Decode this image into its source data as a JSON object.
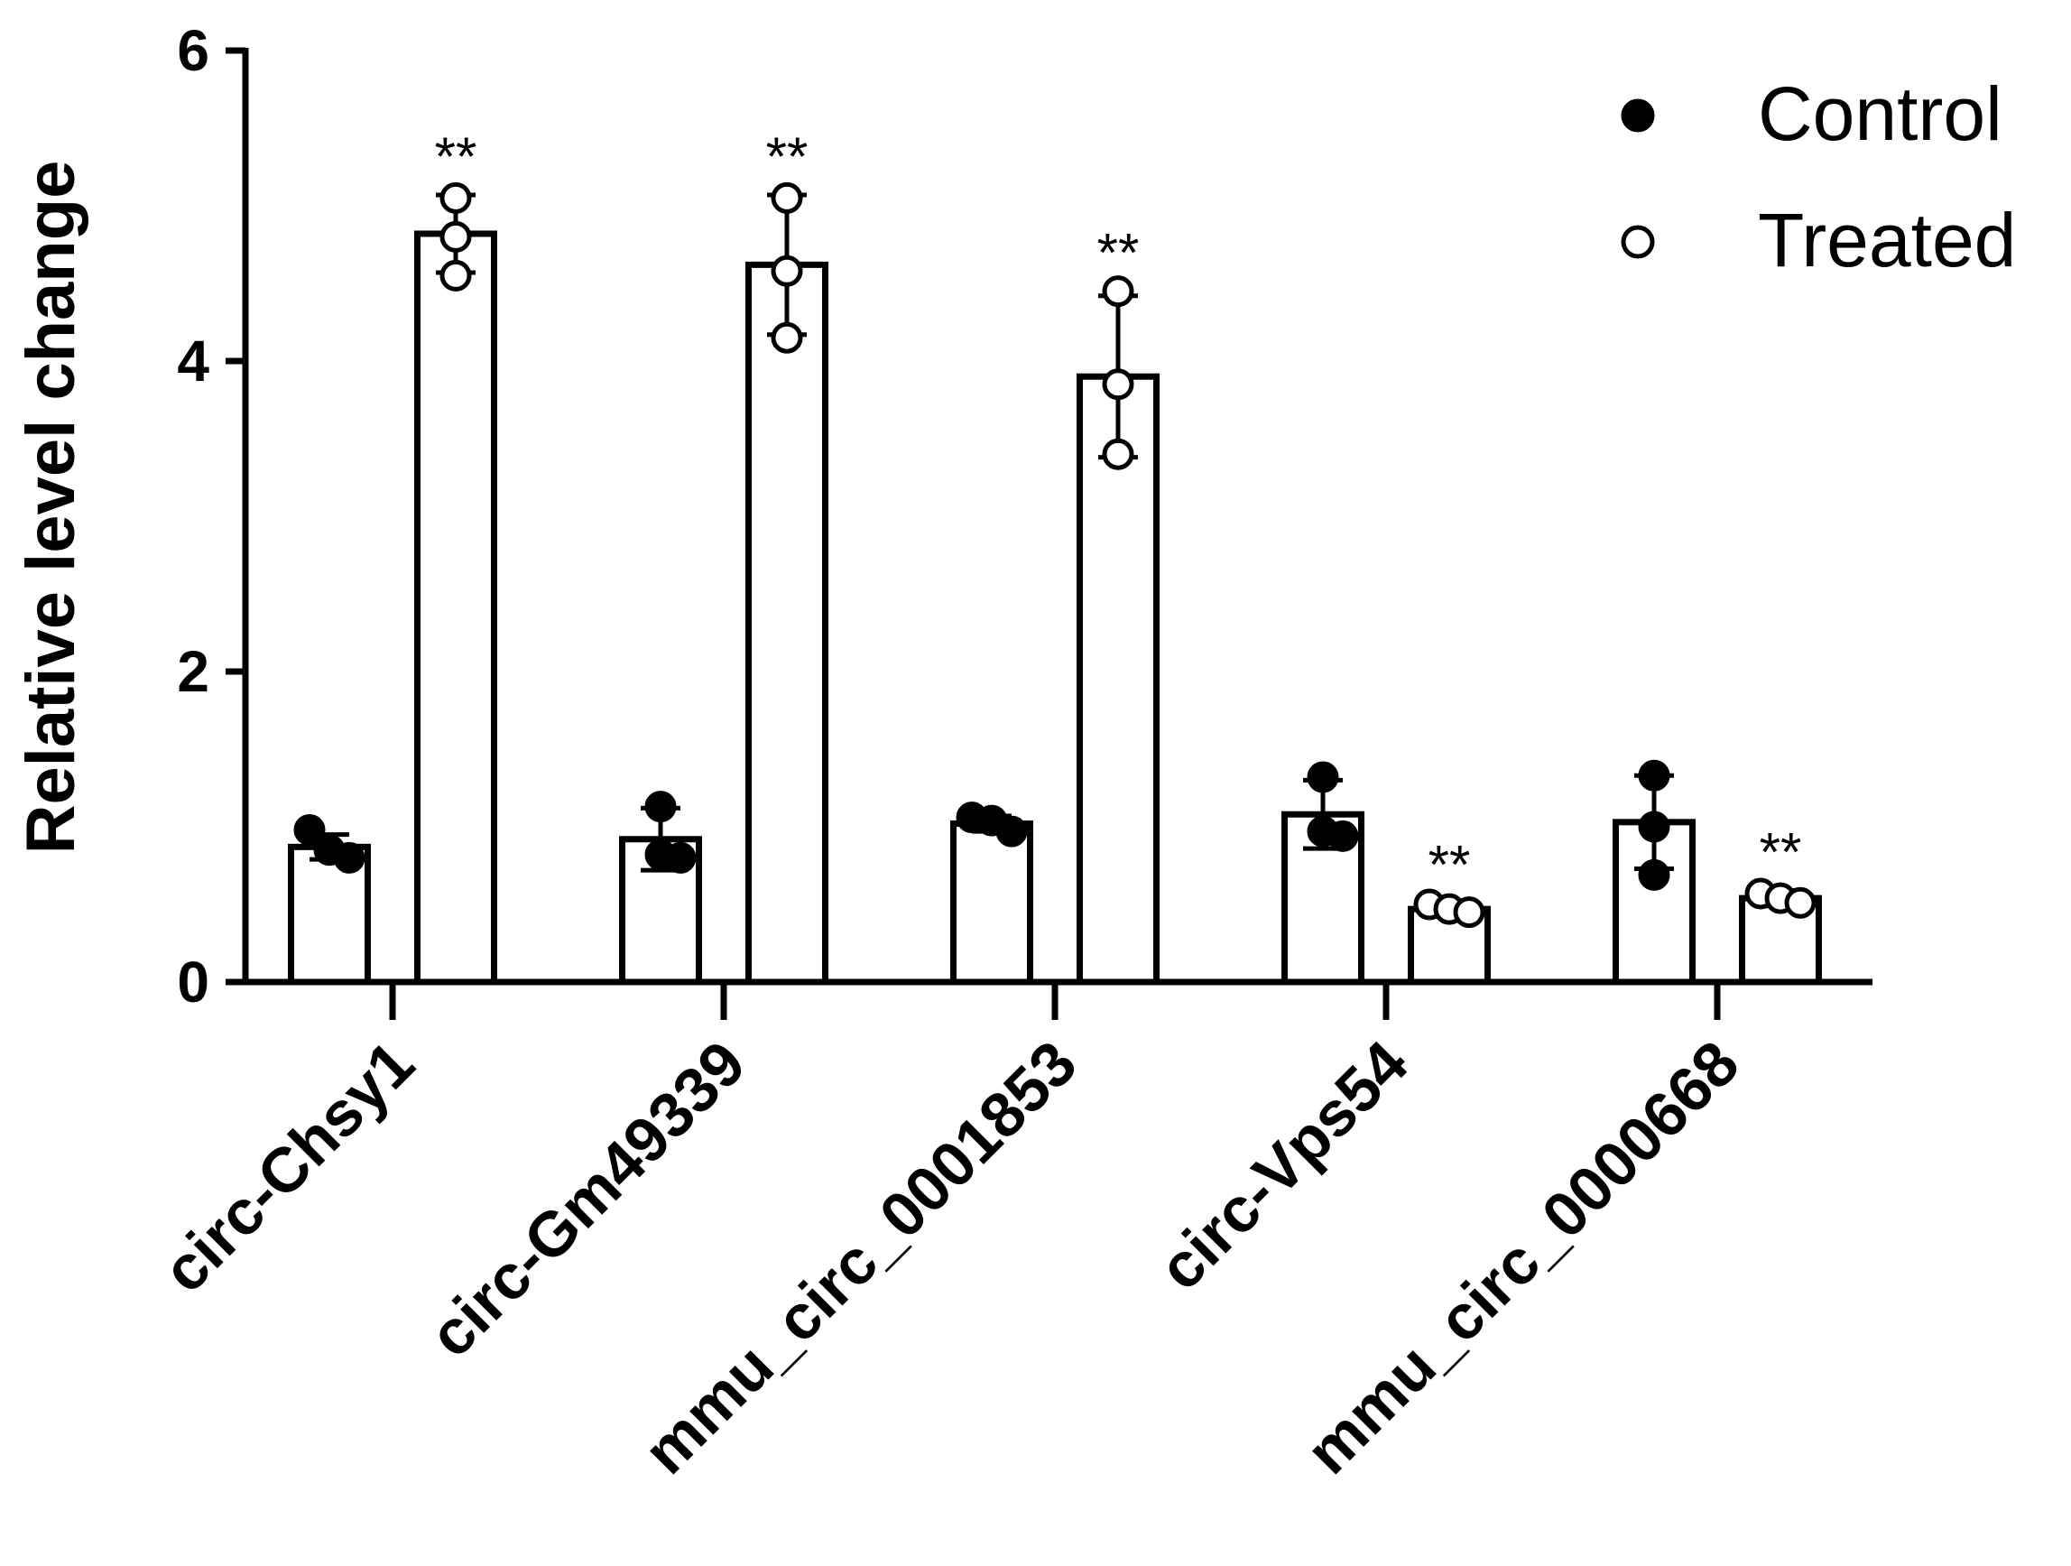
{
  "chart_data": {
    "type": "bar",
    "ylabel": "Relative level change",
    "xlabel": "",
    "ylim": [
      0,
      6
    ],
    "yticks": [
      "0",
      "2",
      "4",
      "6"
    ],
    "categories": [
      "circ-Chsy1",
      "circ-Gm49339",
      "mmu_circ_0001853",
      "circ-Vps54",
      "mmu_circ_0000668"
    ],
    "legend_position": "top-right",
    "series": [
      {
        "name": "Control",
        "marker": "filled-circle",
        "values": [
          0.87,
          0.92,
          1.02,
          1.08,
          1.03
        ],
        "errors": [
          0.08,
          0.2,
          0.05,
          0.22,
          0.3
        ],
        "points": [
          [
            0.98,
            0.85,
            0.8
          ],
          [
            1.13,
            0.82,
            0.8
          ],
          [
            1.06,
            1.04,
            0.97
          ],
          [
            1.32,
            0.97,
            0.94
          ],
          [
            1.33,
            1.0,
            0.69
          ]
        ],
        "significance": [
          "",
          "",
          "",
          "",
          ""
        ]
      },
      {
        "name": "Treated",
        "marker": "open-circle",
        "values": [
          4.82,
          4.62,
          3.9,
          0.47,
          0.54
        ],
        "errors": [
          0.25,
          0.45,
          0.52,
          0.04,
          0.05
        ],
        "points": [
          [
            5.05,
            4.8,
            4.55
          ],
          [
            5.05,
            4.58,
            4.15
          ],
          [
            4.45,
            3.85,
            3.4
          ],
          [
            0.5,
            0.47,
            0.45
          ],
          [
            0.57,
            0.54,
            0.51
          ]
        ],
        "significance": [
          "**",
          "**",
          "**",
          "**",
          "**"
        ]
      }
    ]
  }
}
